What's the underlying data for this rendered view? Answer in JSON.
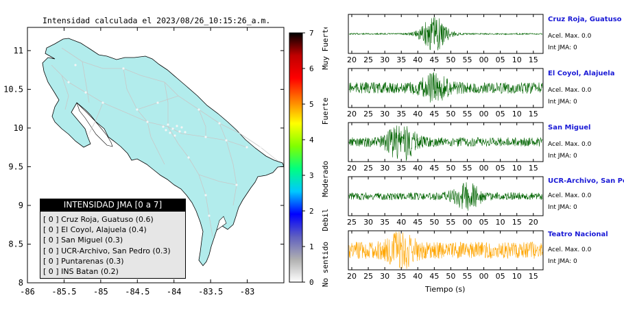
{
  "map": {
    "title": "Intensidad calculada el 2023/08/26_10:15:26_a.m.",
    "xlim": [
      -86,
      -82.5
    ],
    "ylim": [
      8,
      11.3
    ],
    "x_ticks": [
      "-86",
      "-85.5",
      "-85",
      "-84.5",
      "-84",
      "-83.5",
      "-83"
    ],
    "x_tick_values": [
      -86,
      -85.5,
      -85,
      -84.5,
      -84,
      -83.5,
      -83
    ],
    "y_ticks": [
      "8",
      "8.5",
      "9",
      "9.5",
      "10",
      "10.5",
      "11"
    ],
    "y_tick_values": [
      8,
      8.5,
      9,
      9.5,
      10,
      10.5,
      11
    ],
    "land_color": "#b2ecec",
    "road_color": "#c8c8c8"
  },
  "legend": {
    "header": "INTENSIDAD JMA [0 a 7]",
    "items": [
      "[ 0 ] Cruz Roja, Guatuso (0.6)",
      "[ 0 ] El Coyol, Alajuela (0.4)",
      "[ 0 ] San Miguel (0.3)",
      "[ 0 ] UCR-Archivo, San Pedro (0.3)",
      "[ 0 ] Puntarenas (0.3)",
      "[ 0 ] INS Batan (0.2)"
    ]
  },
  "colorbar": {
    "tick_labels": [
      "0",
      "1",
      "2",
      "3",
      "4",
      "5",
      "6",
      "7"
    ],
    "range": [
      0,
      7
    ],
    "category_labels": [
      "No sentido",
      "Debil",
      "Moderado",
      "Fuerte",
      "Muy Fuerte"
    ],
    "colors": [
      "#ffffff",
      "#b0b0b0",
      "#6060c0",
      "#0000ff",
      "#00c8ff",
      "#00ff80",
      "#80ff00",
      "#ffff00",
      "#ff8000",
      "#ff0000",
      "#c00000",
      "#000000"
    ]
  },
  "chart_data": [
    {
      "type": "line",
      "name": "Cruz Roja, Guatuso",
      "accel_label": "Acel. Max. 0.0",
      "jma_label": "Int JMA: 0",
      "color": "#006400",
      "x_ticks": [
        "20",
        "25",
        "30",
        "35",
        "40",
        "45",
        "50",
        "55",
        "00",
        "05",
        "10",
        "15"
      ],
      "first_tick": 20,
      "burst_center_tick": 5,
      "noise_level": 0.04,
      "burst_level": 0.9
    },
    {
      "type": "line",
      "name": "El Coyol, Alajuela",
      "accel_label": "Acel. Max. 0.0",
      "jma_label": "Int JMA: 0",
      "color": "#006400",
      "x_ticks": [
        "20",
        "25",
        "30",
        "35",
        "40",
        "45",
        "50",
        "55",
        "00",
        "05",
        "10",
        "15"
      ],
      "first_tick": 20,
      "burst_center_tick": 5,
      "noise_level": 0.3,
      "burst_level": 0.55
    },
    {
      "type": "line",
      "name": "San Miguel",
      "accel_label": "Acel. Max. 0.0",
      "jma_label": "Int JMA: 0",
      "color": "#006400",
      "x_ticks": [
        "20",
        "25",
        "30",
        "35",
        "40",
        "45",
        "50",
        "55",
        "00",
        "05",
        "10",
        "15"
      ],
      "first_tick": 20,
      "burst_center_tick": 3,
      "noise_level": 0.25,
      "burst_level": 0.85
    },
    {
      "type": "line",
      "name": "UCR-Archivo, San Pedro",
      "accel_label": "Acel. Max. 0.0",
      "jma_label": "Int JMA: 0",
      "color": "#006400",
      "x_ticks": [
        "25",
        "30",
        "35",
        "40",
        "45",
        "50",
        "55",
        "00",
        "05",
        "10",
        "15",
        "20"
      ],
      "first_tick": 25,
      "burst_center_tick": 7,
      "noise_level": 0.2,
      "burst_level": 0.6
    },
    {
      "type": "line",
      "name": "Teatro Nacional",
      "accel_label": "Acel. Max. 0.0",
      "jma_label": "Int JMA: 0",
      "color": "#ffa500",
      "x_ticks": [
        "20",
        "25",
        "30",
        "35",
        "40",
        "45",
        "50",
        "55",
        "00",
        "05",
        "10",
        "15"
      ],
      "first_tick": 20,
      "burst_center_tick": 3,
      "noise_level": 0.45,
      "burst_level": 0.7
    }
  ],
  "xaxis_title": "Tiempo (s)"
}
